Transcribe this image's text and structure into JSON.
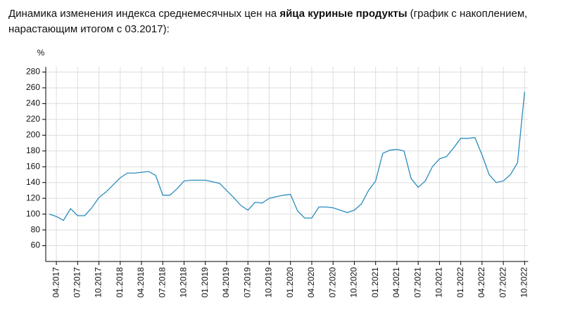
{
  "chart_data": {
    "type": "line",
    "title": [
      "Динамика изменения индекса среднемесячных цен на ",
      "яйца куриные продукты",
      " (график с накоплением,",
      "нарастающим итогом с 03.2017):"
    ],
    "y_label": "%",
    "x": [
      null,
      "04.2017",
      null,
      null,
      "07.2017",
      null,
      null,
      "10.2017",
      null,
      null,
      "01.2018",
      null,
      null,
      "04.2018",
      null,
      null,
      "07.2018",
      null,
      null,
      "10.2018",
      null,
      null,
      "01.2019",
      null,
      null,
      "04.2019",
      null,
      null,
      "07.2019",
      null,
      null,
      "10.2019",
      null,
      null,
      "01.2020",
      null,
      null,
      "04.2020",
      null,
      null,
      "07.2020",
      null,
      null,
      "10.2020",
      null,
      null,
      "01.2021",
      null,
      null,
      "04.2021",
      null,
      null,
      "07.2021",
      null,
      null,
      "10.2021",
      null,
      null,
      "01.2022",
      null,
      null,
      "04.2022",
      null,
      null,
      "07.2022",
      null,
      null,
      "10.2022"
    ],
    "series": [
      {
        "color": "#2b8cbe",
        "values": [
          100,
          97,
          92,
          107,
          98,
          98,
          108,
          121,
          128,
          137,
          146,
          152,
          152,
          153,
          154,
          149,
          124,
          124,
          132,
          142,
          143,
          143,
          143,
          141,
          139,
          130,
          121,
          111,
          105,
          115,
          114,
          120,
          122,
          124,
          125,
          104,
          95,
          95,
          109,
          109,
          108,
          105,
          102,
          105,
          113,
          130,
          142,
          177,
          181,
          182,
          180,
          145,
          134,
          142,
          160,
          170,
          173,
          184,
          196,
          196,
          197,
          175,
          150,
          140,
          142,
          150,
          165,
          255
        ]
      }
    ],
    "ylim": [
      40,
      280
    ],
    "yticks": [
      60,
      80,
      100,
      120,
      140,
      160,
      180,
      200,
      220,
      240,
      260,
      280
    ],
    "grid": true
  }
}
